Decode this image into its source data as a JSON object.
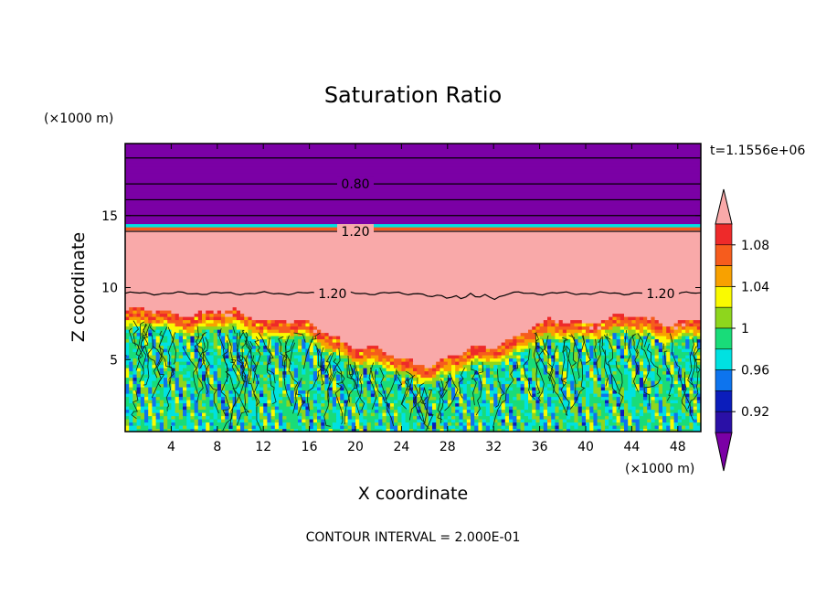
{
  "chart_data": {
    "type": "heatmap",
    "title": "Saturation Ratio",
    "xlabel": "X coordinate",
    "ylabel": "Z coordinate",
    "x_unit": "(×1000 m)",
    "z_unit": "(×1000 m)",
    "time_label": "t=1.1556e+06",
    "footer": "CONTOUR INTERVAL = 2.000E-01",
    "xlim": [
      0,
      50
    ],
    "ylim": [
      0,
      20
    ],
    "x_ticks": [
      4,
      8,
      12,
      16,
      20,
      24,
      28,
      32,
      36,
      40,
      44,
      48
    ],
    "y_ticks": [
      5,
      10,
      15
    ],
    "colorbar": {
      "tick_labels": [
        "1.08",
        "1.04",
        "1",
        "0.96",
        "0.92"
      ],
      "tick_values": [
        1.08,
        1.04,
        1.0,
        0.96,
        0.92
      ],
      "levels": [
        {
          "min": 1.1,
          "max": null,
          "color": "#f9a9a9"
        },
        {
          "min": 1.08,
          "max": 1.1,
          "color": "#ee2a2a"
        },
        {
          "min": 1.06,
          "max": 1.08,
          "color": "#f65c1d"
        },
        {
          "min": 1.04,
          "max": 1.06,
          "color": "#f8a100"
        },
        {
          "min": 1.02,
          "max": 1.04,
          "color": "#fafa00"
        },
        {
          "min": 1.0,
          "max": 1.02,
          "color": "#8ed61d"
        },
        {
          "min": 0.98,
          "max": 1.0,
          "color": "#19dc79"
        },
        {
          "min": 0.96,
          "max": 0.98,
          "color": "#00e1e1"
        },
        {
          "min": 0.94,
          "max": 0.96,
          "color": "#0d74ee"
        },
        {
          "min": 0.92,
          "max": 0.94,
          "color": "#0b1dbb"
        },
        {
          "min": 0.9,
          "max": 0.92,
          "color": "#2a10a6"
        },
        {
          "min": null,
          "max": 0.9,
          "color": "#7b00a5"
        }
      ]
    },
    "contour_labels": [
      {
        "text": "0.80",
        "x": 20,
        "z": 17.2
      },
      {
        "text": "1.20",
        "x": 20,
        "z": 13.9
      },
      {
        "text": "1.20",
        "x": 18,
        "z": 9.6
      },
      {
        "text": "1.20",
        "x": 46.5,
        "z": 9.6
      }
    ],
    "regions": {
      "upper_band": {
        "z_min": 14.7,
        "z_max": 20,
        "value": 0.8
      },
      "transition": {
        "z_min": 14.0,
        "z_max": 14.7
      },
      "supersaturated_layer": {
        "z_min": 8,
        "z_max": 14,
        "value": 1.2
      },
      "convective_layer": {
        "z_min": 0,
        "z_max": 8,
        "value_range": [
          0.96,
          1.04
        ]
      }
    }
  }
}
